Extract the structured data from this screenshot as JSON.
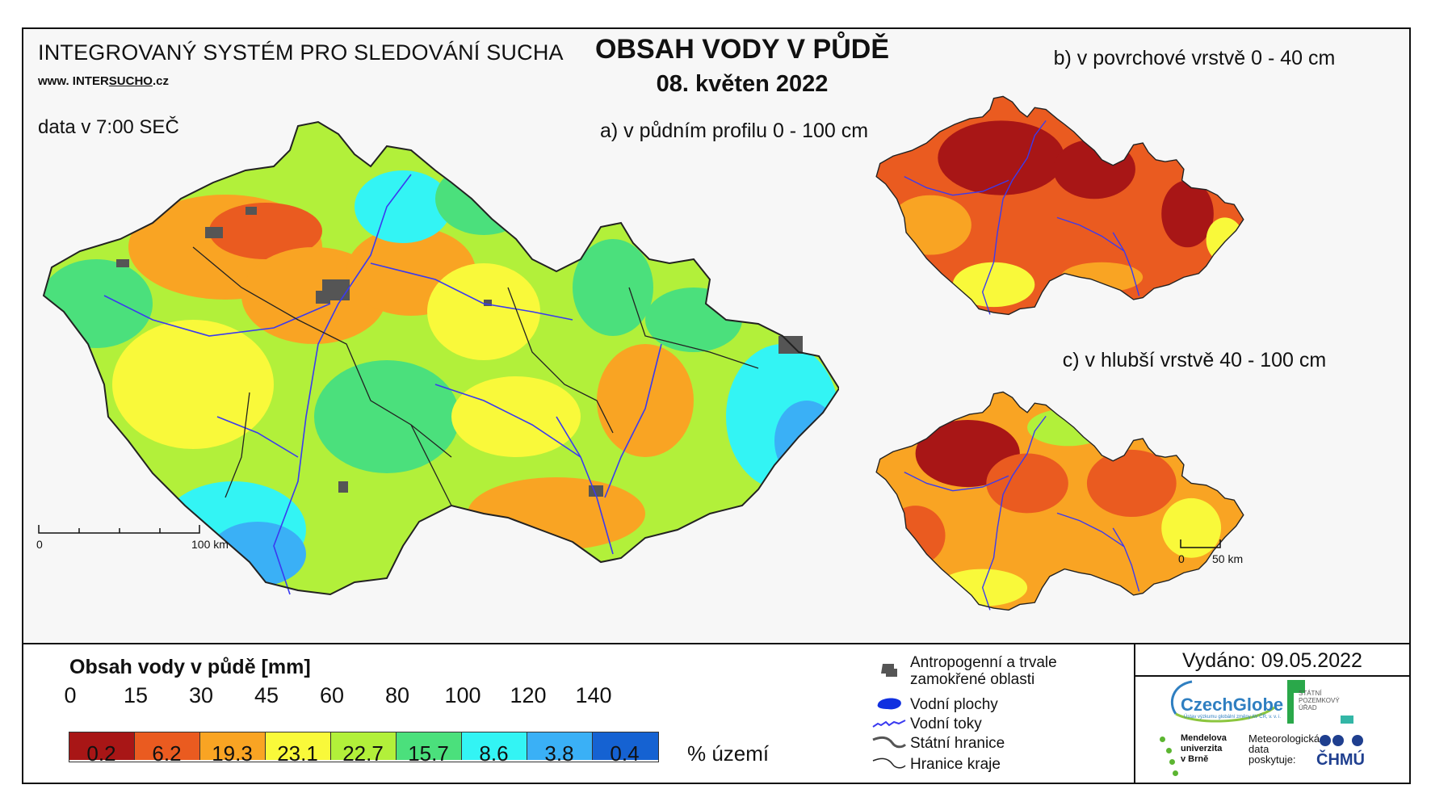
{
  "header": {
    "system_title": "INTEGROVANÝ SYSTÉM PRO SLEDOVÁNÍ SUCHA",
    "website_prefix": "www. INTER",
    "website_underlined": "SUCHO",
    "website_suffix": ".cz",
    "data_time": "data v 7:00 SEČ",
    "main_title": "OBSAH VODY V PŮDĚ",
    "date": "08. květen 2022"
  },
  "maps": {
    "a_label": "a) v půdním profilu 0 - 100 cm",
    "b_label": "b) v povrchové vrstvě 0 - 40 cm",
    "c_label": "c) v hlubší vrstvě 40 - 100 cm",
    "main_scale": {
      "start": "0",
      "end": "100 km"
    },
    "small_scale": {
      "start": "0",
      "end": "50 km"
    }
  },
  "legend": {
    "title": "Obsah vody v půdě  [mm]",
    "bounds": [
      "0",
      "15",
      "30",
      "45",
      "60",
      "80",
      "100",
      "120",
      "140"
    ],
    "bins": [
      {
        "color": "#a81616",
        "percent": "0.2"
      },
      {
        "color": "#ea5b20",
        "percent": "6.2"
      },
      {
        "color": "#f9a423",
        "percent": "19.3"
      },
      {
        "color": "#f9f93a",
        "percent": "23.1"
      },
      {
        "color": "#b2f03a",
        "percent": "22.7"
      },
      {
        "color": "#4be07c",
        "percent": "15.7"
      },
      {
        "color": "#33f4f4",
        "percent": "8.6"
      },
      {
        "color": "#3ab0f6",
        "percent": "3.8"
      },
      {
        "color": "#1562d2",
        "percent": "0.4"
      }
    ],
    "percent_unit": "% území"
  },
  "symbols": {
    "urban": "Antropogenní a trvale zamokřené oblasti",
    "water_bodies": "Vodní plochy",
    "rivers": "Vodní toky",
    "state_border": "Státní hranice",
    "region_border": "Hranice kraje"
  },
  "issued": "Vydáno: 09.05.2022",
  "logos": {
    "czechglobe": "CzechGlobe",
    "czechglobe_sub": "Ústav výzkumu globální změny AV ČR, v. v. i.",
    "spu": [
      "STÁTNÍ",
      "POZEMKOVÝ",
      "ÚŘAD"
    ],
    "mendel": [
      "Mendelova",
      "univerzita",
      "v Brně"
    ],
    "met_data": [
      "Meteorologická",
      "data",
      "poskytuje:"
    ],
    "chmu": "ČHMÚ"
  },
  "colors": {
    "river": "#3a3af0",
    "border": "#222222",
    "urban": "#555555",
    "water": "#1030e0"
  }
}
